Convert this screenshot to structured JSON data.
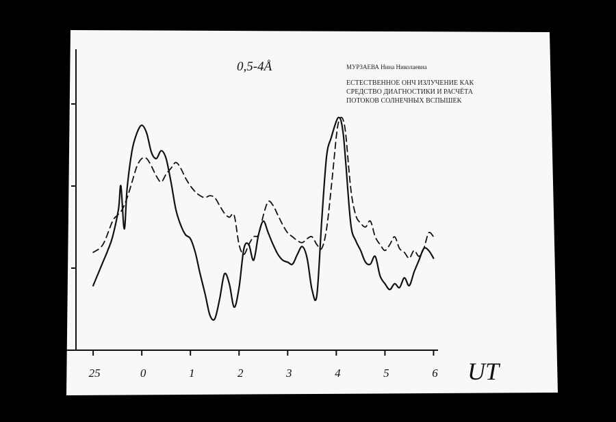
{
  "header": {
    "range_label": "0,5-4Å",
    "author": "МУРЗАЕВА Нина Николаевна",
    "title_lines": [
      "ЕСТЕСТВЕННОЕ ОНЧ ИЗЛУЧЕНИЕ КАК",
      "СРЕДСТВО ДИАГНОСТИКИ И РАСЧЁТА",
      "ПОТОКОВ СОЛНЕЧНЫХ ВСПЫШЕК"
    ]
  },
  "colors": {
    "background": "#000000",
    "paper": "#f7f8fa",
    "ink": "#111111"
  },
  "chart_data": {
    "type": "line",
    "xlabel": "UT",
    "ylabel": "",
    "x_ticks": [
      -1,
      0,
      1,
      2,
      3,
      4,
      5,
      6
    ],
    "x_tick_labels": [
      "25",
      "0",
      "1",
      "2",
      "3",
      "4",
      "5",
      "6"
    ],
    "xlim": [
      -1.1,
      6.05
    ],
    "ylim": [
      0,
      100
    ],
    "y_ticks_labeled": false,
    "grid": false,
    "series": [
      {
        "style": "solid",
        "x": [
          -1.0,
          -0.9,
          -0.8,
          -0.7,
          -0.6,
          -0.48,
          -0.43,
          -0.36,
          -0.3,
          -0.2,
          -0.1,
          0.0,
          0.1,
          0.2,
          0.3,
          0.4,
          0.5,
          0.6,
          0.7,
          0.8,
          0.9,
          1.0,
          1.1,
          1.2,
          1.3,
          1.4,
          1.5,
          1.6,
          1.7,
          1.8,
          1.9,
          2.0,
          2.1,
          2.2,
          2.3,
          2.4,
          2.5,
          2.6,
          2.7,
          2.8,
          2.9,
          3.0,
          3.1,
          3.2,
          3.3,
          3.4,
          3.5,
          3.6,
          3.7,
          3.8,
          3.9,
          4.0,
          4.05,
          4.1,
          4.15,
          4.2,
          4.3,
          4.4,
          4.5,
          4.6,
          4.7,
          4.8,
          4.9,
          5.0,
          5.1,
          5.2,
          5.3,
          5.4,
          5.5,
          5.6,
          5.7,
          5.8,
          5.9,
          6.0
        ],
        "y": [
          19,
          25,
          31,
          37,
          44,
          58,
          70,
          48,
          69,
          88,
          97,
          101,
          97,
          87,
          84,
          88,
          84,
          72,
          58,
          50,
          45,
          43,
          36,
          25,
          15,
          4,
          2,
          12,
          25,
          20,
          8,
          18,
          38,
          40,
          32,
          45,
          52,
          46,
          40,
          35,
          32,
          31,
          30,
          35,
          39,
          33,
          17,
          14,
          52,
          85,
          95,
          103,
          105,
          103,
          95,
          80,
          50,
          42,
          37,
          31,
          30,
          34,
          24,
          20,
          17,
          20,
          18,
          23,
          19,
          26,
          32,
          38,
          37,
          33
        ]
      },
      {
        "style": "dashed",
        "x": [
          -1.0,
          -0.8,
          -0.6,
          -0.5,
          -0.4,
          -0.3,
          -0.2,
          -0.1,
          0.0,
          0.1,
          0.2,
          0.3,
          0.4,
          0.5,
          0.6,
          0.7,
          0.8,
          0.9,
          1.0,
          1.1,
          1.2,
          1.3,
          1.4,
          1.5,
          1.6,
          1.7,
          1.8,
          1.9,
          2.0,
          2.1,
          2.2,
          2.3,
          2.4,
          2.5,
          2.6,
          2.7,
          2.8,
          2.9,
          3.0,
          3.1,
          3.2,
          3.3,
          3.4,
          3.5,
          3.6,
          3.7,
          3.8,
          3.9,
          4.0,
          4.05,
          4.1,
          4.15,
          4.2,
          4.3,
          4.4,
          4.5,
          4.6,
          4.7,
          4.8,
          4.9,
          5.0,
          5.1,
          5.2,
          5.3,
          5.4,
          5.5,
          5.6,
          5.7,
          5.8,
          5.9,
          6.0
        ],
        "y": [
          36,
          40,
          52,
          55,
          58,
          64,
          72,
          80,
          84,
          84,
          80,
          75,
          72,
          76,
          79,
          82,
          79,
          74,
          70,
          67,
          65,
          64,
          65,
          64,
          60,
          56,
          54,
          55,
          40,
          35,
          40,
          44,
          45,
          55,
          62,
          60,
          55,
          50,
          46,
          44,
          42,
          41,
          43,
          44,
          40,
          38,
          48,
          70,
          95,
          103,
          105,
          103,
          95,
          68,
          55,
          51,
          49,
          52,
          44,
          40,
          37,
          40,
          44,
          38,
          36,
          33,
          37,
          34,
          38,
          46,
          44
        ]
      }
    ]
  }
}
